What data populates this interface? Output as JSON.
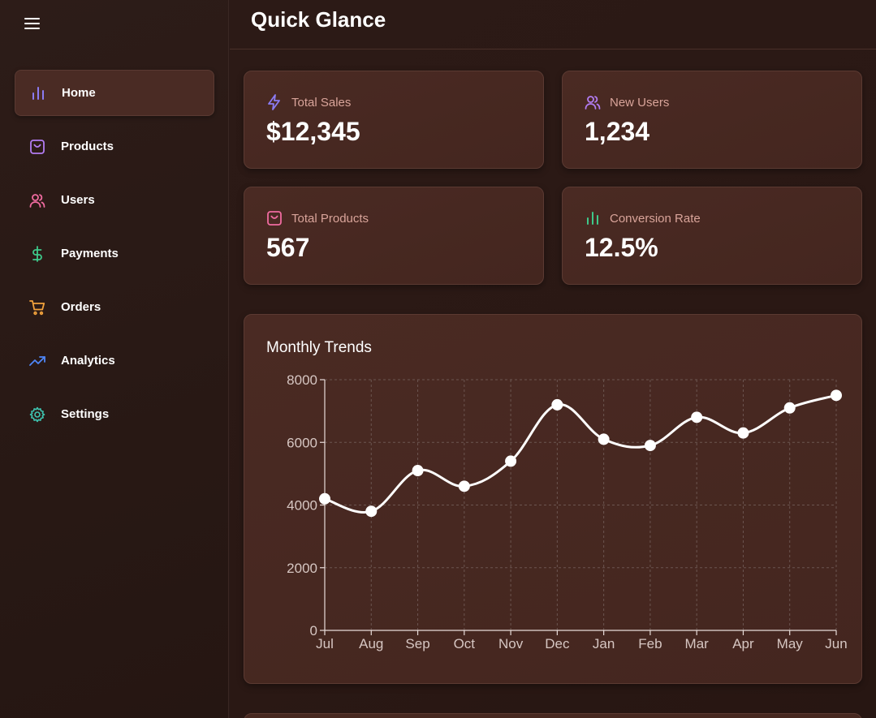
{
  "sidebar": {
    "menu_icon": "menu-icon",
    "items": [
      {
        "label": "Home",
        "icon": "bar-chart-icon",
        "color": "#8b7bf2",
        "active": true
      },
      {
        "label": "Products",
        "icon": "shopping-bag-icon",
        "color": "#b27cf2"
      },
      {
        "label": "Users",
        "icon": "users-icon",
        "color": "#f06ba0"
      },
      {
        "label": "Payments",
        "icon": "dollar-icon",
        "color": "#3ec98a"
      },
      {
        "label": "Orders",
        "icon": "cart-icon",
        "color": "#f2a23c"
      },
      {
        "label": "Analytics",
        "icon": "trending-up-icon",
        "color": "#4f86f7"
      },
      {
        "label": "Settings",
        "icon": "gear-icon",
        "color": "#3fc7b3"
      }
    ]
  },
  "header": {
    "title": "Quick Glance"
  },
  "stats": [
    {
      "label": "Total Sales",
      "value": "$12,345",
      "icon": "lightning-icon",
      "color": "#8b7bf2"
    },
    {
      "label": "New Users",
      "value": "1,234",
      "icon": "users-icon",
      "color": "#b27cf2"
    },
    {
      "label": "Total Products",
      "value": "567",
      "icon": "shopping-bag-icon",
      "color": "#f06ba0"
    },
    {
      "label": "Conversion Rate",
      "value": "12.5%",
      "icon": "bar-chart-icon",
      "color": "#3ec98a"
    }
  ],
  "chart_data": {
    "type": "line",
    "title": "Monthly Trends",
    "categories": [
      "Jul",
      "Aug",
      "Sep",
      "Oct",
      "Nov",
      "Dec",
      "Jan",
      "Feb",
      "Mar",
      "Apr",
      "May",
      "Jun"
    ],
    "values": [
      4200,
      3800,
      5100,
      4600,
      5400,
      7200,
      6100,
      5900,
      6800,
      6300,
      7100,
      7500
    ],
    "yticks": [
      0,
      2000,
      4000,
      6000,
      8000
    ],
    "ylim": [
      0,
      8000
    ],
    "grid": true,
    "line_color": "#ffffff"
  }
}
